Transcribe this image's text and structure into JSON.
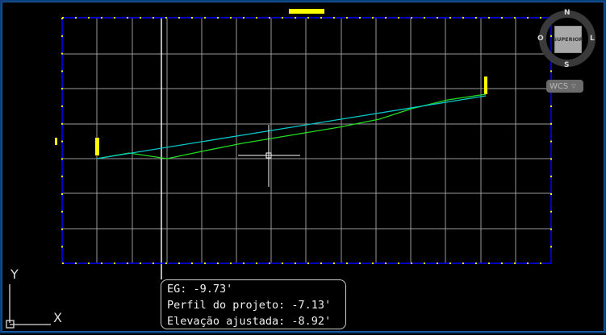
{
  "viewcube": {
    "north": "N",
    "south": "S",
    "east": "L",
    "west": "O",
    "face": "SUPERIOR"
  },
  "wcs_button": {
    "label": "WCS",
    "icon": "chevron-down-icon"
  },
  "tooltip": {
    "lines": [
      "EG:  -9.73'",
      "Perfil do projeto:  -7.13'",
      "Elevação ajustada:  -8.92'"
    ]
  },
  "ucs": {
    "x": "X",
    "y": "Y"
  },
  "colors": {
    "grid": "#9a9a9a",
    "frame": "#0000ff",
    "labels": "#ffff00",
    "design_profile": "#00c8c8",
    "existing_ground": "#22dd22"
  }
}
